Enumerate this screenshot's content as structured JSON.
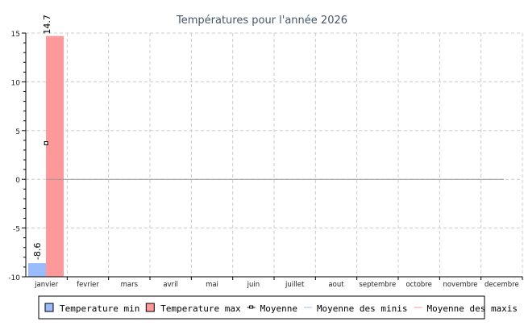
{
  "chart_data": {
    "type": "bar",
    "title": "Températures pour l'année 2026",
    "categories": [
      "janvier",
      "fevrier",
      "mars",
      "avril",
      "mai",
      "juin",
      "juillet",
      "aout",
      "septembre",
      "octobre",
      "novembre",
      "decembre"
    ],
    "series": [
      {
        "name": "Temperature min",
        "type": "bar",
        "color": "#99bbff",
        "values": [
          -8.6,
          null,
          null,
          null,
          null,
          null,
          null,
          null,
          null,
          null,
          null,
          null
        ]
      },
      {
        "name": "Temperature max",
        "type": "bar",
        "color": "#ff9999",
        "values": [
          14.7,
          null,
          null,
          null,
          null,
          null,
          null,
          null,
          null,
          null,
          null,
          null
        ]
      },
      {
        "name": "Moyenne",
        "type": "line-marker",
        "color": "#000000",
        "values": [
          3.7,
          null,
          null,
          null,
          null,
          null,
          null,
          null,
          null,
          null,
          null,
          null
        ]
      },
      {
        "name": "Moyenne des minis",
        "type": "line",
        "color": "#99bbff"
      },
      {
        "name": "Moyenne des maxis",
        "type": "line",
        "color": "#ff9999"
      }
    ],
    "data_labels": [
      "-8.6",
      "14.7"
    ],
    "ylim": [
      -10,
      15
    ],
    "yticks": [
      -10,
      -5,
      0,
      5,
      10,
      15
    ],
    "grid": true,
    "legend_position": "bottom"
  }
}
